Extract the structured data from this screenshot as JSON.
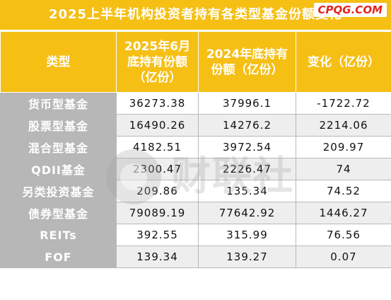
{
  "title": "2025上半年机构投资者持有各类型基金份额变化",
  "site_mark": "CPQG.COM",
  "watermark_text": "财联社",
  "headers": {
    "type": "类型",
    "h2025": "2025年6月底持有份额（亿份）",
    "h2024": "2024年底持有份额（亿份）",
    "change": "变化（亿份）"
  },
  "rows": [
    {
      "type": "货币型基金",
      "v2025": "36273.38",
      "v2024": "37996.1",
      "change": "-1722.72"
    },
    {
      "type": "股票型基金",
      "v2025": "16490.26",
      "v2024": "14276.2",
      "change": "2214.06"
    },
    {
      "type": "混合型基金",
      "v2025": "4182.51",
      "v2024": "3972.54",
      "change": "209.97"
    },
    {
      "type": "QDII基金",
      "v2025": "2300.47",
      "v2024": "2226.47",
      "change": "74"
    },
    {
      "type": "另类投资基金",
      "v2025": "209.86",
      "v2024": "135.34",
      "change": "74.52"
    },
    {
      "type": "债券型基金",
      "v2025": "79089.19",
      "v2024": "77642.92",
      "change": "1446.27"
    },
    {
      "type": "REITs",
      "v2025": "392.55",
      "v2024": "315.99",
      "change": "76.56"
    },
    {
      "type": "FOF",
      "v2025": "139.34",
      "v2024": "139.27",
      "change": "0.07"
    }
  ],
  "colors": {
    "header_bg": "#f5bf14",
    "type_col_bg": "#b7b7b7",
    "site_mark": "#e2261d"
  }
}
